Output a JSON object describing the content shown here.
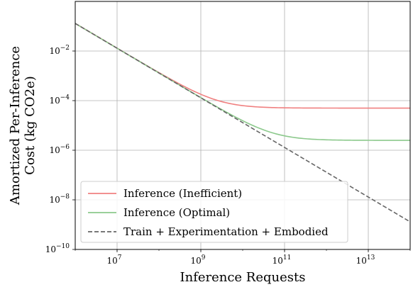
{
  "chart_data": {
    "type": "line",
    "title": "",
    "xlabel": "Inference Requests",
    "ylabel_line1": "Amortized Per-Inference",
    "ylabel_line2": "Cost (kg CO2e)",
    "x_scale": "log",
    "y_scale": "log",
    "xlim": [
      1000000.0,
      100000000000000.0
    ],
    "ylim": [
      1e-10,
      1.0
    ],
    "x_ticks": [
      {
        "base": "10",
        "exp": "7",
        "value": 10000000.0
      },
      {
        "base": "10",
        "exp": "9",
        "value": 1000000000.0
      },
      {
        "base": "10",
        "exp": "11",
        "value": 100000000000.0
      },
      {
        "base": "10",
        "exp": "13",
        "value": 10000000000000.0
      }
    ],
    "y_ticks": [
      {
        "base": "10",
        "exp": "−10",
        "value": 1e-10
      },
      {
        "base": "10",
        "exp": "−8",
        "value": 1e-08
      },
      {
        "base": "10",
        "exp": "−6",
        "value": 1e-06
      },
      {
        "base": "10",
        "exp": "−4",
        "value": 0.0001
      },
      {
        "base": "10",
        "exp": "−2",
        "value": 0.01
      }
    ],
    "grid": true,
    "legend_position": "lower-left",
    "series": [
      {
        "name": "Inference (Inefficient)",
        "color": "#f08080",
        "dash": "solid",
        "fixed_cost_kg": 130000.0,
        "per_request_kg": 5e-05
      },
      {
        "name": "Inference (Optimal)",
        "color": "#8cc98c",
        "dash": "solid",
        "fixed_cost_kg": 130000.0,
        "per_request_kg": 2.5e-06
      },
      {
        "name": "Train + Experimentation + Embodied",
        "color": "#666666",
        "dash": "dashed",
        "fixed_cost_kg": 130000.0,
        "per_request_kg": 0
      }
    ]
  }
}
